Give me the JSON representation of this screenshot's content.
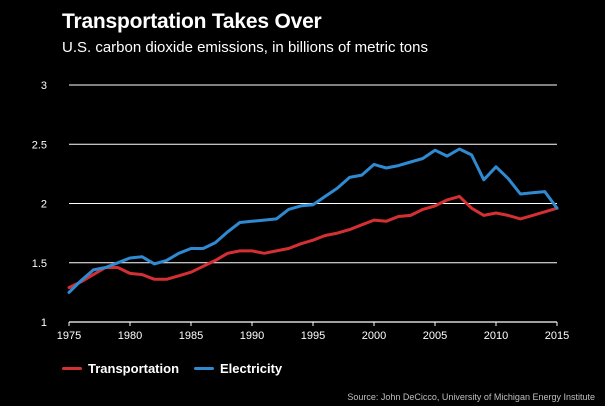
{
  "title": "Transportation Takes Over",
  "subtitle": "U.S. carbon dioxide emissions, in billions of metric tons",
  "source": "Source: John DeCicco, University of Michigan Energy Institute",
  "colors": {
    "transportation": "#d43034",
    "electricity": "#2f8ad2",
    "grid": "#ffffff",
    "background": "#000000"
  },
  "chart_data": {
    "type": "line",
    "x": [
      1975,
      1976,
      1977,
      1978,
      1979,
      1980,
      1981,
      1982,
      1983,
      1984,
      1985,
      1986,
      1987,
      1988,
      1989,
      1990,
      1991,
      1992,
      1993,
      1994,
      1995,
      1996,
      1997,
      1998,
      1999,
      2000,
      2001,
      2002,
      2003,
      2004,
      2005,
      2006,
      2007,
      2008,
      2009,
      2010,
      2011,
      2012,
      2013,
      2014,
      2015
    ],
    "series": [
      {
        "name": "Transportation",
        "color": "#d43034",
        "values": [
          1.29,
          1.34,
          1.4,
          1.46,
          1.46,
          1.41,
          1.4,
          1.36,
          1.36,
          1.39,
          1.42,
          1.47,
          1.52,
          1.58,
          1.6,
          1.6,
          1.58,
          1.6,
          1.62,
          1.66,
          1.69,
          1.73,
          1.75,
          1.78,
          1.82,
          1.86,
          1.85,
          1.89,
          1.9,
          1.95,
          1.98,
          2.03,
          2.06,
          1.96,
          1.9,
          1.92,
          1.9,
          1.87,
          1.9,
          1.93,
          1.96
        ]
      },
      {
        "name": "Electricity",
        "color": "#2f8ad2",
        "values": [
          1.25,
          1.35,
          1.44,
          1.46,
          1.5,
          1.54,
          1.55,
          1.49,
          1.52,
          1.58,
          1.62,
          1.62,
          1.67,
          1.76,
          1.84,
          1.85,
          1.86,
          1.87,
          1.95,
          1.98,
          1.99,
          2.06,
          2.13,
          2.22,
          2.24,
          2.33,
          2.3,
          2.32,
          2.35,
          2.38,
          2.45,
          2.4,
          2.46,
          2.41,
          2.2,
          2.31,
          2.21,
          2.08,
          2.09,
          2.1,
          1.96
        ]
      }
    ],
    "xticks": [
      "1975",
      "1980",
      "1985",
      "1990",
      "1995",
      "2000",
      "2005",
      "2010",
      "2015"
    ],
    "yticks": [
      "1",
      "1.5",
      "2",
      "2.5",
      "3"
    ],
    "xlim": [
      1975,
      2015
    ],
    "ylim": [
      1,
      3
    ],
    "grid": true,
    "legend": "bottom-left"
  },
  "legend_items": [
    {
      "label": "Transportation",
      "color": "#d43034"
    },
    {
      "label": "Electricity",
      "color": "#2f8ad2"
    }
  ]
}
